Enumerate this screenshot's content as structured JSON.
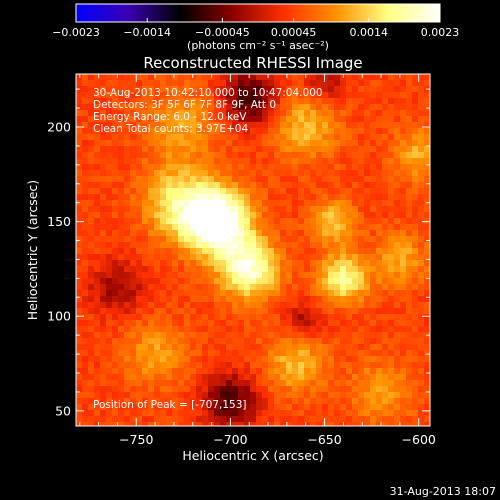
{
  "chart_data": {
    "type": "heatmap",
    "title": "Reconstructed RHESSI Image",
    "xlabel": "Heliocentric X (arcsec)",
    "ylabel": "Heliocentric Y (arcsec)",
    "xlim": [
      -782,
      -594
    ],
    "ylim": [
      42,
      228
    ],
    "xticks": [
      -750,
      -700,
      -650,
      -600
    ],
    "xtick_labels": [
      "−750",
      "−700",
      "−650",
      "−600"
    ],
    "yticks": [
      50,
      100,
      150,
      200
    ],
    "ytick_labels": [
      "50",
      "100",
      "150",
      "200"
    ],
    "colorbar": {
      "min": -0.0023,
      "max": 0.0023,
      "ticks": [
        -0.0023,
        -0.0014,
        -0.00045,
        0.00045,
        0.0014,
        0.0023
      ],
      "tick_labels": [
        "−0.0023",
        "−0.0014",
        "−0.00045",
        "0.00045",
        "0.0014",
        "0.0023"
      ],
      "unit_label": "(photons cm⁻² s⁻¹ asec⁻²)",
      "colormap": [
        "#0000ff",
        "#3a00b0",
        "#000000",
        "#8a0000",
        "#ff3000",
        "#ff9000",
        "#ffff80",
        "#ffffff"
      ]
    },
    "annotations": {
      "time_range": "30-Aug-2013 10:42:10.000 to 10:47:04.000",
      "detectors": "Detectors: 3F 5F 6F 7F 8F 9F, Att 0",
      "energy": "Energy Range: 6.0 - 12.0 keV",
      "clean": "Clean     Total counts: 3.97E+04",
      "peak": "Position of Peak = [-707,153]"
    },
    "peak_position": [
      -707,
      153
    ],
    "sources": [
      {
        "x": -707,
        "y": 150,
        "amplitude": 0.0023,
        "sigma": 12
      },
      {
        "x": -690,
        "y": 125,
        "amplitude": 0.0016,
        "sigma": 11
      },
      {
        "x": -728,
        "y": 160,
        "amplitude": 0.0011,
        "sigma": 13
      },
      {
        "x": -640,
        "y": 120,
        "amplitude": 0.0013,
        "sigma": 9
      },
      {
        "x": -645,
        "y": 150,
        "amplitude": 0.0009,
        "sigma": 8
      },
      {
        "x": -660,
        "y": 200,
        "amplitude": 0.0008,
        "sigma": 12
      },
      {
        "x": -725,
        "y": 200,
        "amplitude": 0.0006,
        "sigma": 14
      },
      {
        "x": -600,
        "y": 185,
        "amplitude": 0.0007,
        "sigma": 10
      },
      {
        "x": -610,
        "y": 130,
        "amplitude": 0.0007,
        "sigma": 10
      },
      {
        "x": -740,
        "y": 80,
        "amplitude": 0.0006,
        "sigma": 12
      },
      {
        "x": -665,
        "y": 75,
        "amplitude": 0.0008,
        "sigma": 11
      },
      {
        "x": -620,
        "y": 60,
        "amplitude": 0.0006,
        "sigma": 12
      },
      {
        "x": -690,
        "y": 215,
        "amplitude": -0.0012,
        "sigma": 10
      },
      {
        "x": -760,
        "y": 115,
        "amplitude": -0.0007,
        "sigma": 10
      },
      {
        "x": -700,
        "y": 55,
        "amplitude": -0.0011,
        "sigma": 10
      },
      {
        "x": -660,
        "y": 98,
        "amplitude": -0.0006,
        "sigma": 7
      },
      {
        "x": -650,
        "y": 225,
        "amplitude": -0.0006,
        "sigma": 8
      }
    ]
  },
  "footer": {
    "timestamp": "31-Aug-2013 18:07"
  }
}
